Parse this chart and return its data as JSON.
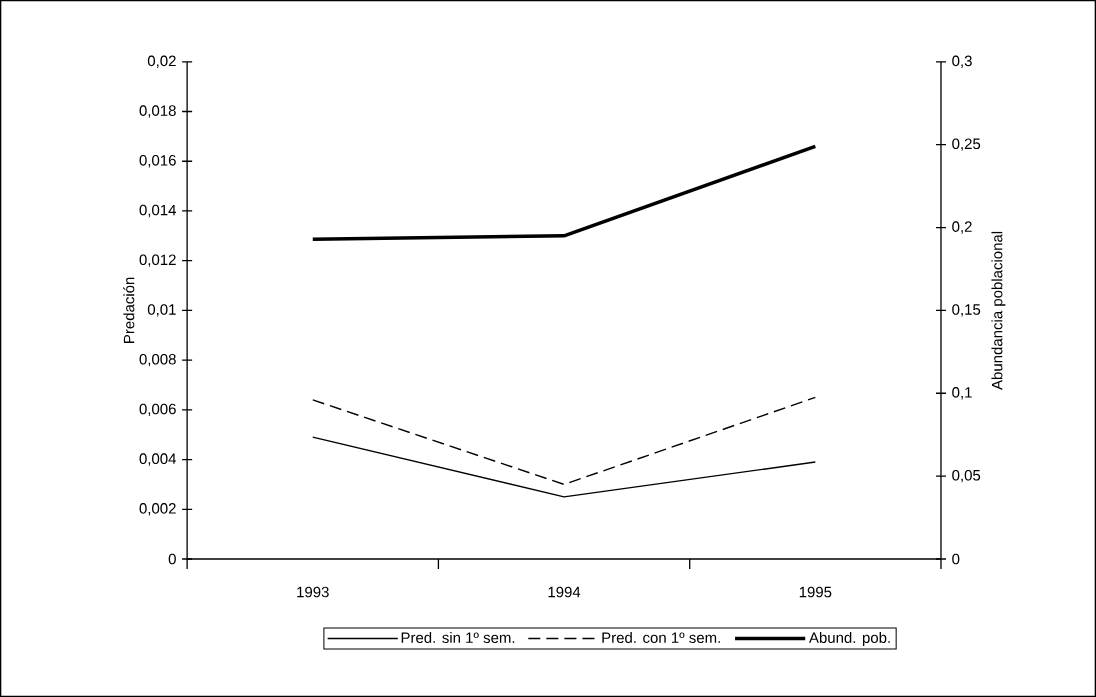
{
  "chart_data": {
    "type": "line",
    "categories": [
      "1993",
      "1994",
      "1995"
    ],
    "ylabel": "Predación",
    "y2label": "Abundancia poblacional",
    "ylim": [
      0,
      0.02
    ],
    "yticks": [
      0,
      {
        "value": 0.002,
        "label": "0,002"
      },
      {
        "value": 0.004,
        "label": "0,004"
      },
      {
        "value": 0.006,
        "label": "0,006"
      },
      {
        "value": 0.008,
        "label": "0,008"
      },
      {
        "value": 0.01,
        "label": "0,01"
      },
      {
        "value": 0.012,
        "label": "0,012"
      },
      {
        "value": 0.014,
        "label": "0,014"
      },
      {
        "value": 0.016,
        "label": "0,016"
      },
      {
        "value": 0.018,
        "label": "0,018"
      },
      {
        "value": 0.02,
        "label": "0,02"
      }
    ],
    "y2lim": [
      0,
      0.3
    ],
    "y2ticks": [
      0,
      {
        "value": 0.05,
        "label": "0,05"
      },
      {
        "value": 0.1,
        "label": "0,1"
      },
      {
        "value": 0.15,
        "label": "0,15"
      },
      {
        "value": 0.2,
        "label": "0,2"
      },
      {
        "value": 0.25,
        "label": "0,25"
      },
      {
        "value": 0.3,
        "label": "0,3"
      }
    ],
    "legend": "bottom",
    "series": [
      {
        "name": "Pred. sin 1º sem.",
        "color": "#000000",
        "line_style": "solid",
        "values": [
          0.0049,
          0.0025,
          0.0039
        ]
      },
      {
        "name": "Pred. con 1º sem.",
        "color": "#000000",
        "line_style": "dashed",
        "values": [
          0.0064,
          0.003,
          0.0065
        ]
      },
      {
        "name": "Abund. pob.",
        "color": "#000000",
        "line_style": "solid",
        "axis": "y2",
        "values": [
          0.193,
          0.195,
          0.249
        ]
      }
    ]
  }
}
